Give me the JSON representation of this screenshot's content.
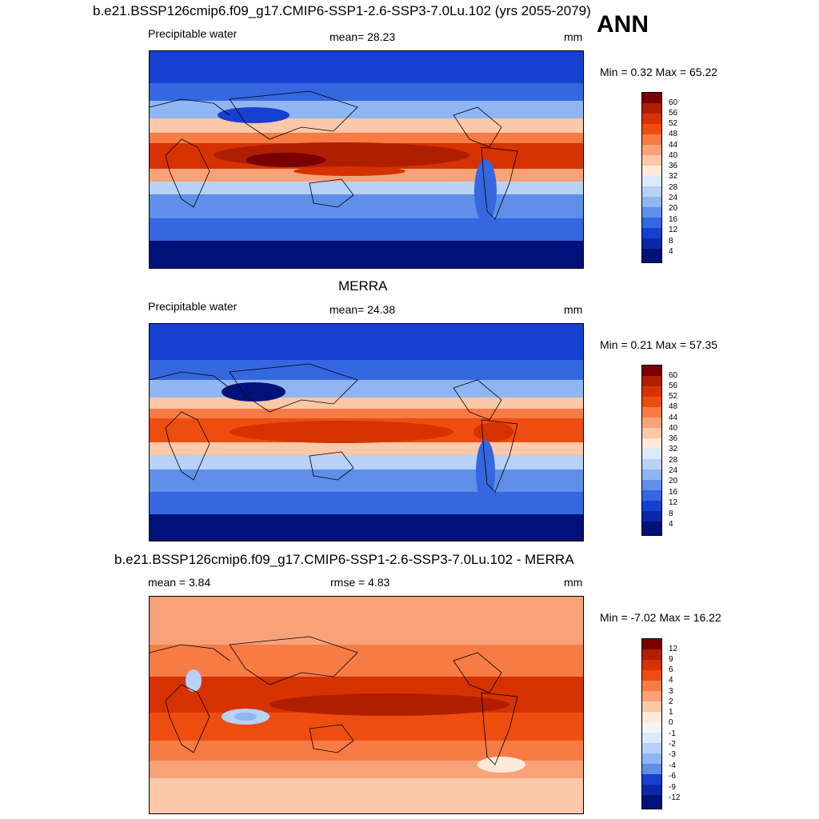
{
  "figure": {
    "main_title": "b.e21.BSSP126cmip6.f09_g17.CMIP6-SSP1-2.6-SSP3-7.0Lu.102 (yrs 2055-2079)",
    "season": "ANN"
  },
  "panels": [
    {
      "id": "model",
      "left_label": "Precipitable water",
      "center_label": "mean=  28.23",
      "units": "mm",
      "minmax": "Min =   0.32 Max =  65.22",
      "colorbar": {
        "labels": [
          "60",
          "56",
          "52",
          "48",
          "44",
          "40",
          "36",
          "32",
          "28",
          "24",
          "20",
          "16",
          "12",
          "8",
          "4"
        ],
        "colors": [
          "#7a0000",
          "#b01e00",
          "#d63200",
          "#ee4d10",
          "#f77b45",
          "#f9a27a",
          "#fbc8a8",
          "#fde9d9",
          "#dbe9fb",
          "#b7d1f7",
          "#8fb5f2",
          "#5f8fe9",
          "#3567e0",
          "#1540d0",
          "#0a28a8",
          "#00127a"
        ]
      }
    },
    {
      "id": "obs",
      "title": "MERRA",
      "left_label": "Precipitable water",
      "center_label": "mean=  24.38",
      "units": "mm",
      "minmax": "Min =   0.21 Max =  57.35",
      "colorbar": {
        "labels": [
          "60",
          "56",
          "52",
          "48",
          "44",
          "40",
          "36",
          "32",
          "28",
          "24",
          "20",
          "16",
          "12",
          "8",
          "4"
        ],
        "colors": [
          "#7a0000",
          "#b01e00",
          "#d63200",
          "#ee4d10",
          "#f77b45",
          "#f9a27a",
          "#fbc8a8",
          "#fde9d9",
          "#dbe9fb",
          "#b7d1f7",
          "#8fb5f2",
          "#5f8fe9",
          "#3567e0",
          "#1540d0",
          "#0a28a8",
          "#00127a"
        ]
      }
    },
    {
      "id": "diff",
      "title": "b.e21.BSSP126cmip6.f09_g17.CMIP6-SSP1-2.6-SSP3-7.0Lu.102 - MERRA",
      "left_label": "mean =   3.84",
      "center_label": "rmse =   4.83",
      "units": "mm",
      "minmax": "Min =  -7.02 Max =  16.22",
      "colorbar": {
        "labels": [
          "12",
          "9",
          "6",
          "4",
          "3",
          "2",
          "1",
          "0",
          "-1",
          "-2",
          "-3",
          "-4",
          "-6",
          "-9",
          "-12"
        ],
        "colors": [
          "#7a0000",
          "#b01e00",
          "#d63200",
          "#ee4d10",
          "#f77b45",
          "#f9a27a",
          "#fbc8a8",
          "#fde9d9",
          "#f4f4f4",
          "#dbe9fb",
          "#b7d1f7",
          "#8fb5f2",
          "#5f8fe9",
          "#1540d0",
          "#0a28a8",
          "#00127a"
        ]
      }
    }
  ]
}
